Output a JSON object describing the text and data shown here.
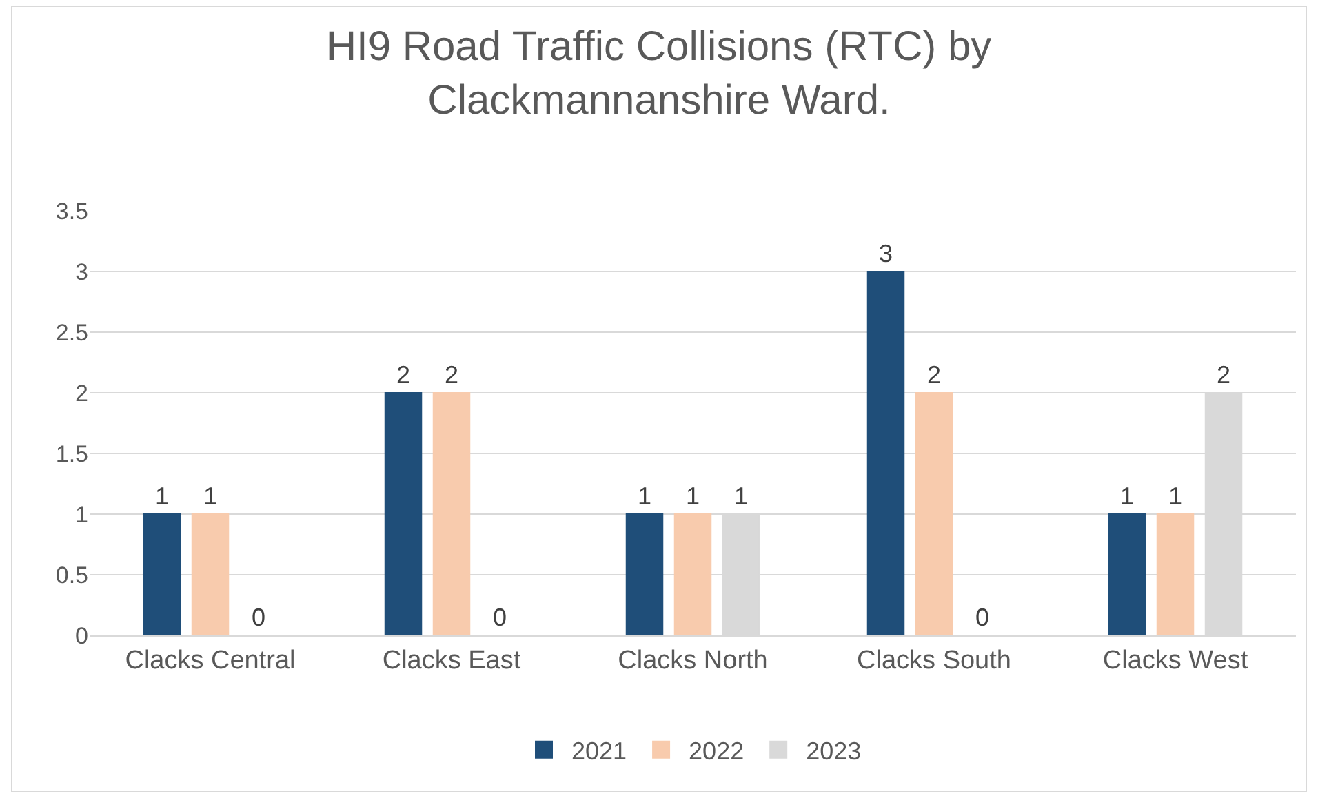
{
  "chart_data": {
    "type": "bar",
    "title": "HI9 Road Traffic Collisions (RTC) by Clackmannanshire Ward.",
    "categories": [
      "Clacks Central",
      "Clacks East",
      "Clacks North",
      "Clacks South",
      "Clacks West"
    ],
    "series": [
      {
        "name": "2021",
        "color": "#1f4e79",
        "values": [
          1,
          2,
          1,
          3,
          1
        ]
      },
      {
        "name": "2022",
        "color": "#f8cbad",
        "values": [
          1,
          2,
          1,
          2,
          1
        ]
      },
      {
        "name": "2023",
        "color": "#d9d9d9",
        "values": [
          0,
          0,
          1,
          0,
          2
        ]
      }
    ],
    "ylim": [
      0,
      3.5
    ],
    "yticks": [
      0,
      0.5,
      1,
      1.5,
      2,
      2.5,
      3,
      3.5
    ],
    "grid": "y",
    "legend": "bottom",
    "data_labels": true
  }
}
